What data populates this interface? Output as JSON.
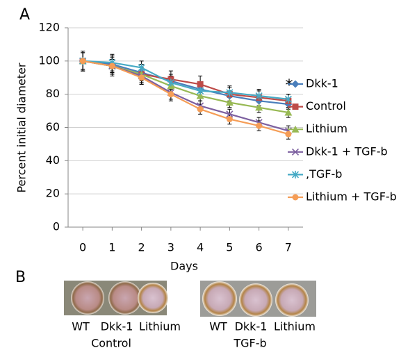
{
  "panel_labels": [
    "A",
    "B"
  ],
  "chart_data": {
    "type": "line",
    "xlabel": "Days",
    "ylabel": "Percent initial diameter",
    "annotation": "*",
    "x": [
      0,
      1,
      2,
      3,
      4,
      5,
      6,
      7
    ],
    "xlim": [
      -0.5,
      7.5
    ],
    "xticks": [
      0,
      1,
      2,
      3,
      4,
      5,
      6,
      7
    ],
    "ylim": [
      0,
      120
    ],
    "yticks": [
      0,
      20,
      40,
      60,
      80,
      100,
      120
    ],
    "grid": true,
    "legend": "right",
    "series": [
      {
        "name": "Dkk-1",
        "color": "#4a7ebb",
        "marker": "diamond",
        "values": [
          100,
          98,
          93,
          88,
          83,
          79,
          76,
          74
        ],
        "errors": [
          6,
          5,
          5,
          4,
          4,
          3,
          3,
          3
        ]
      },
      {
        "name": "Control",
        "color": "#be4b48",
        "marker": "square",
        "values": [
          100,
          97,
          92,
          89,
          86,
          80,
          78,
          76
        ],
        "errors": [
          6,
          6,
          6,
          5,
          5,
          5,
          5,
          4
        ]
      },
      {
        "name": "Lithium",
        "color": "#98b954",
        "marker": "triangle",
        "values": [
          100,
          97,
          92,
          85,
          79,
          75,
          72,
          69
        ],
        "errors": [
          5,
          4,
          4,
          4,
          3,
          3,
          3,
          3
        ]
      },
      {
        "name": "Dkk-1 + TGF-b",
        "color": "#7d60a0",
        "marker": "x",
        "values": [
          100,
          97,
          91,
          81,
          73,
          68,
          63,
          58
        ],
        "errors": [
          5,
          4,
          4,
          4,
          3,
          3,
          3,
          3
        ]
      },
      {
        "name": ",TGF-b",
        "color": "#46aac5",
        "marker": "star",
        "values": [
          100,
          99,
          96,
          87,
          82,
          81,
          79,
          77
        ],
        "errors": [
          6,
          5,
          4,
          4,
          3,
          3,
          3,
          3
        ]
      },
      {
        "name": "Lithium + TGF-b",
        "color": "#f59d56",
        "marker": "circle",
        "values": [
          100,
          97,
          90,
          80,
          71,
          65,
          61,
          56
        ],
        "errors": [
          6,
          5,
          4,
          4,
          3,
          3,
          3,
          3
        ]
      }
    ]
  },
  "panel_b": {
    "groups": [
      {
        "labels": [
          "WT",
          "Dkk-1",
          "Lithium"
        ],
        "caption": "Control"
      },
      {
        "labels": [
          "WT",
          "Dkk-1",
          "Lithium"
        ],
        "caption": "TGF-b"
      }
    ]
  }
}
